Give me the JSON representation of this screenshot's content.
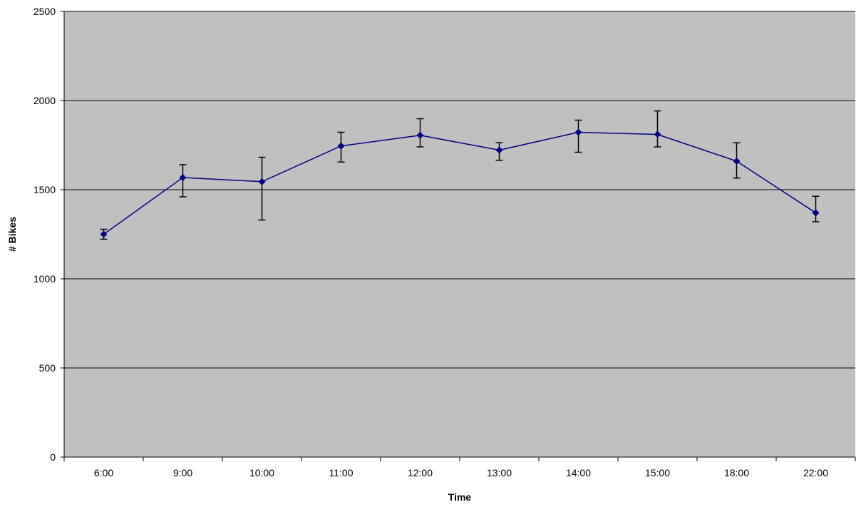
{
  "chart_data": {
    "type": "line",
    "title": "",
    "xlabel": "Time",
    "ylabel": "# Bikes",
    "categories": [
      "6:00",
      "9:00",
      "10:00",
      "11:00",
      "12:00",
      "13:00",
      "14:00",
      "15:00",
      "18:00",
      "22:00"
    ],
    "series": [
      {
        "values": [
          1250,
          1568,
          1545,
          1745,
          1805,
          1722,
          1822,
          1810,
          1660,
          1370
        ],
        "error_low": [
          1222,
          1460,
          1330,
          1655,
          1740,
          1665,
          1710,
          1740,
          1565,
          1320
        ],
        "error_high": [
          1278,
          1640,
          1682,
          1822,
          1898,
          1764,
          1890,
          1942,
          1763,
          1463
        ]
      }
    ],
    "ylim": [
      0,
      2500
    ],
    "yticks": [
      "0",
      "500",
      "1000",
      "1500",
      "2000",
      "2500"
    ],
    "grid": true,
    "legend": "none",
    "colors": {
      "plot_background": "#c0c0c0",
      "line": "#000080",
      "marker": "#000080",
      "error_bar": "#000000",
      "gridline": "#000000"
    }
  }
}
